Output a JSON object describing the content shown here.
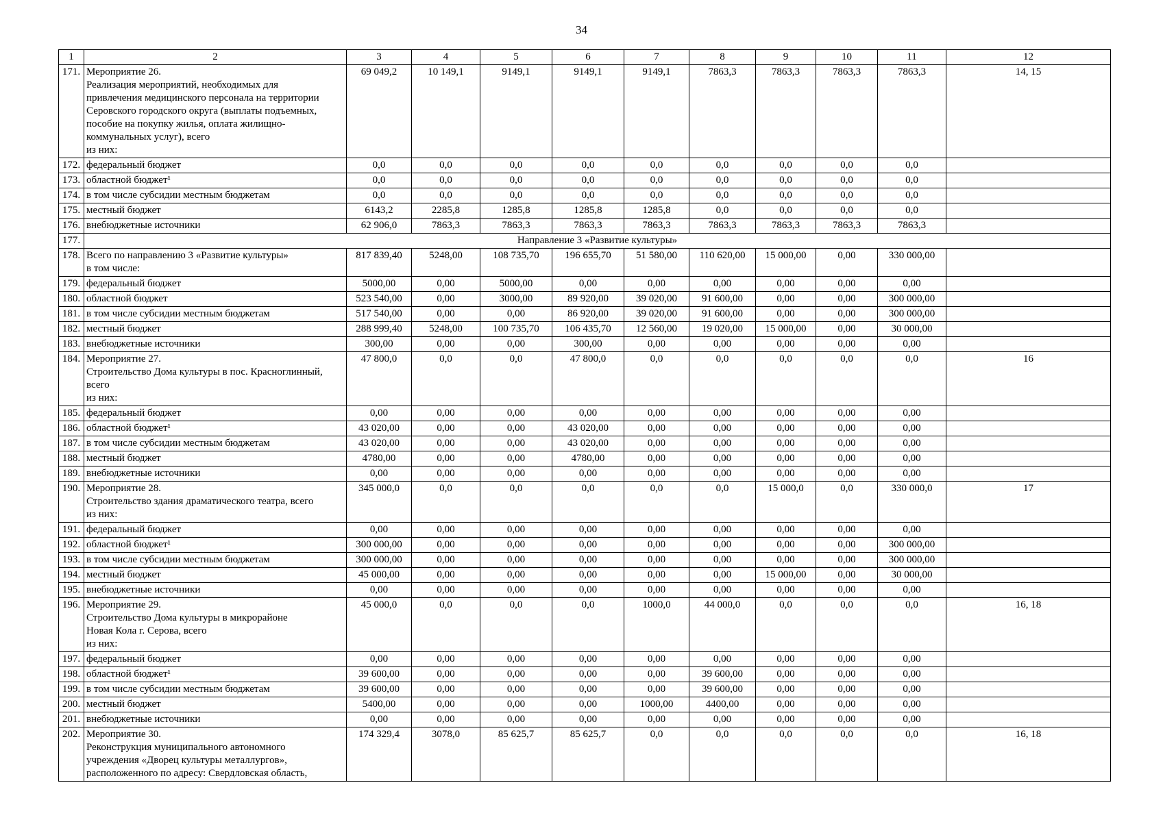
{
  "page": {
    "number": "34"
  },
  "table": {
    "header_cols": [
      "1",
      "2",
      "3",
      "4",
      "5",
      "6",
      "7",
      "8",
      "9",
      "10",
      "11",
      "12"
    ],
    "rows": [
      {
        "num": "171.",
        "label": [
          "Мероприятие 26.",
          "Реализация мероприятий, необходимых для",
          "привлечения медицинского персонала на территории",
          "Серовского городского округа (выплаты подъемных,",
          "пособие на покупку жилья, оплата жилищно-",
          "коммунальных услуг), всего",
          "из них:"
        ],
        "values": [
          "69 049,2",
          "10 149,1",
          "9149,1",
          "9149,1",
          "9149,1",
          "7863,3",
          "7863,3",
          "7863,3",
          "7863,3"
        ],
        "note": "14, 15"
      },
      {
        "num": "172.",
        "label": [
          "федеральный бюджет"
        ],
        "values": [
          "0,0",
          "0,0",
          "0,0",
          "0,0",
          "0,0",
          "0,0",
          "0,0",
          "0,0",
          "0,0"
        ],
        "note": ""
      },
      {
        "num": "173.",
        "label": [
          "областной бюджет¹"
        ],
        "values": [
          "0,0",
          "0,0",
          "0,0",
          "0,0",
          "0,0",
          "0,0",
          "0,0",
          "0,0",
          "0,0"
        ],
        "note": ""
      },
      {
        "num": "174.",
        "label": [
          "в том числе субсидии местным бюджетам"
        ],
        "values": [
          "0,0",
          "0,0",
          "0,0",
          "0,0",
          "0,0",
          "0,0",
          "0,0",
          "0,0",
          "0,0"
        ],
        "note": ""
      },
      {
        "num": "175.",
        "label": [
          "местный бюджет"
        ],
        "values": [
          "6143,2",
          "2285,8",
          "1285,8",
          "1285,8",
          "1285,8",
          "0,0",
          "0,0",
          "0,0",
          "0,0"
        ],
        "note": ""
      },
      {
        "num": "176.",
        "label": [
          "внебюджетные источники"
        ],
        "values": [
          "62 906,0",
          "7863,3",
          "7863,3",
          "7863,3",
          "7863,3",
          "7863,3",
          "7863,3",
          "7863,3",
          "7863,3"
        ],
        "note": ""
      },
      {
        "num": "177.",
        "section": "Направление 3 «Развитие культуры»"
      },
      {
        "num": "178.",
        "label": [
          "Всего по направлению 3 «Развитие культуры»",
          "в том числе:"
        ],
        "values": [
          "817 839,40",
          "5248,00",
          "108 735,70",
          "196 655,70",
          "51 580,00",
          "110 620,00",
          "15 000,00",
          "0,00",
          "330 000,00"
        ],
        "note": ""
      },
      {
        "num": "179.",
        "label": [
          "федеральный бюджет"
        ],
        "values": [
          "5000,00",
          "0,00",
          "5000,00",
          "0,00",
          "0,00",
          "0,00",
          "0,00",
          "0,00",
          "0,00"
        ],
        "note": ""
      },
      {
        "num": "180.",
        "label": [
          "областной бюджет"
        ],
        "values": [
          "523 540,00",
          "0,00",
          "3000,00",
          "89 920,00",
          "39 020,00",
          "91 600,00",
          "0,00",
          "0,00",
          "300 000,00"
        ],
        "note": ""
      },
      {
        "num": "181.",
        "label": [
          "в том числе субсидии местным бюджетам"
        ],
        "values": [
          "517 540,00",
          "0,00",
          "0,00",
          "86 920,00",
          "39 020,00",
          "91 600,00",
          "0,00",
          "0,00",
          "300 000,00"
        ],
        "note": ""
      },
      {
        "num": "182.",
        "label": [
          "местный бюджет"
        ],
        "values": [
          "288 999,40",
          "5248,00",
          "100 735,70",
          "106 435,70",
          "12 560,00",
          "19 020,00",
          "15 000,00",
          "0,00",
          "30 000,00"
        ],
        "note": ""
      },
      {
        "num": "183.",
        "label": [
          "внебюджетные источники"
        ],
        "values": [
          "300,00",
          "0,00",
          "0,00",
          "300,00",
          "0,00",
          "0,00",
          "0,00",
          "0,00",
          "0,00"
        ],
        "note": ""
      },
      {
        "num": "184.",
        "label": [
          "Мероприятие 27.",
          "Строительство Дома культуры в пос. Красноглинный,",
          "всего",
          "из них:"
        ],
        "values": [
          "47 800,0",
          "0,0",
          "0,0",
          "47 800,0",
          "0,0",
          "0,0",
          "0,0",
          "0,0",
          "0,0"
        ],
        "note": "16"
      },
      {
        "num": "185.",
        "label": [
          "федеральный бюджет"
        ],
        "values": [
          "0,00",
          "0,00",
          "0,00",
          "0,00",
          "0,00",
          "0,00",
          "0,00",
          "0,00",
          "0,00"
        ],
        "note": ""
      },
      {
        "num": "186.",
        "label": [
          "областной бюджет¹"
        ],
        "values": [
          "43 020,00",
          "0,00",
          "0,00",
          "43 020,00",
          "0,00",
          "0,00",
          "0,00",
          "0,00",
          "0,00"
        ],
        "note": ""
      },
      {
        "num": "187.",
        "label": [
          "в том числе субсидии местным бюджетам"
        ],
        "values": [
          "43 020,00",
          "0,00",
          "0,00",
          "43 020,00",
          "0,00",
          "0,00",
          "0,00",
          "0,00",
          "0,00"
        ],
        "note": ""
      },
      {
        "num": "188.",
        "label": [
          "местный бюджет"
        ],
        "values": [
          "4780,00",
          "0,00",
          "0,00",
          "4780,00",
          "0,00",
          "0,00",
          "0,00",
          "0,00",
          "0,00"
        ],
        "note": ""
      },
      {
        "num": "189.",
        "label": [
          "внебюджетные источники"
        ],
        "values": [
          "0,00",
          "0,00",
          "0,00",
          "0,00",
          "0,00",
          "0,00",
          "0,00",
          "0,00",
          "0,00"
        ],
        "note": ""
      },
      {
        "num": "190.",
        "label": [
          "Мероприятие 28.",
          "Строительство здания драматического театра, всего",
          "из них:"
        ],
        "values": [
          "345 000,0",
          "0,0",
          "0,0",
          "0,0",
          "0,0",
          "0,0",
          "15 000,0",
          "0,0",
          "330 000,0"
        ],
        "note": "17"
      },
      {
        "num": "191.",
        "label": [
          "федеральный бюджет"
        ],
        "values": [
          "0,00",
          "0,00",
          "0,00",
          "0,00",
          "0,00",
          "0,00",
          "0,00",
          "0,00",
          "0,00"
        ],
        "note": ""
      },
      {
        "num": "192.",
        "label": [
          "областной бюджет¹"
        ],
        "values": [
          "300 000,00",
          "0,00",
          "0,00",
          "0,00",
          "0,00",
          "0,00",
          "0,00",
          "0,00",
          "300 000,00"
        ],
        "note": ""
      },
      {
        "num": "193.",
        "label": [
          "в том числе субсидии местным бюджетам"
        ],
        "values": [
          "300 000,00",
          "0,00",
          "0,00",
          "0,00",
          "0,00",
          "0,00",
          "0,00",
          "0,00",
          "300 000,00"
        ],
        "note": ""
      },
      {
        "num": "194.",
        "label": [
          "местный бюджет"
        ],
        "values": [
          "45 000,00",
          "0,00",
          "0,00",
          "0,00",
          "0,00",
          "0,00",
          "15 000,00",
          "0,00",
          "30 000,00"
        ],
        "note": ""
      },
      {
        "num": "195.",
        "label": [
          "внебюджетные источники"
        ],
        "values": [
          "0,00",
          "0,00",
          "0,00",
          "0,00",
          "0,00",
          "0,00",
          "0,00",
          "0,00",
          "0,00"
        ],
        "note": ""
      },
      {
        "num": "196.",
        "label": [
          "Мероприятие 29.",
          "Строительство Дома культуры в микрорайоне",
          "Новая Кола г. Серова, всего",
          "из них:"
        ],
        "values": [
          "45 000,0",
          "0,0",
          "0,0",
          "0,0",
          "1000,0",
          "44 000,0",
          "0,0",
          "0,0",
          "0,0"
        ],
        "note": "16, 18"
      },
      {
        "num": "197.",
        "label": [
          "федеральный бюджет"
        ],
        "values": [
          "0,00",
          "0,00",
          "0,00",
          "0,00",
          "0,00",
          "0,00",
          "0,00",
          "0,00",
          "0,00"
        ],
        "note": ""
      },
      {
        "num": "198.",
        "label": [
          "областной бюджет¹"
        ],
        "values": [
          "39 600,00",
          "0,00",
          "0,00",
          "0,00",
          "0,00",
          "39 600,00",
          "0,00",
          "0,00",
          "0,00"
        ],
        "note": ""
      },
      {
        "num": "199.",
        "label": [
          "в том числе субсидии местным бюджетам"
        ],
        "values": [
          "39 600,00",
          "0,00",
          "0,00",
          "0,00",
          "0,00",
          "39 600,00",
          "0,00",
          "0,00",
          "0,00"
        ],
        "note": ""
      },
      {
        "num": "200.",
        "label": [
          "местный бюджет"
        ],
        "values": [
          "5400,00",
          "0,00",
          "0,00",
          "0,00",
          "1000,00",
          "4400,00",
          "0,00",
          "0,00",
          "0,00"
        ],
        "note": ""
      },
      {
        "num": "201.",
        "label": [
          "внебюджетные источники"
        ],
        "values": [
          "0,00",
          "0,00",
          "0,00",
          "0,00",
          "0,00",
          "0,00",
          "0,00",
          "0,00",
          "0,00"
        ],
        "note": ""
      },
      {
        "num": "202.",
        "label": [
          "Мероприятие 30.",
          "Реконструкция муниципального автономного",
          "учреждения «Дворец культуры металлургов»,",
          "расположенного по адресу: Свердловская область,"
        ],
        "values": [
          "174 329,4",
          "3078,0",
          "85 625,7",
          "85 625,7",
          "0,0",
          "0,0",
          "0,0",
          "0,0",
          "0,0"
        ],
        "note": "16, 18"
      }
    ]
  }
}
